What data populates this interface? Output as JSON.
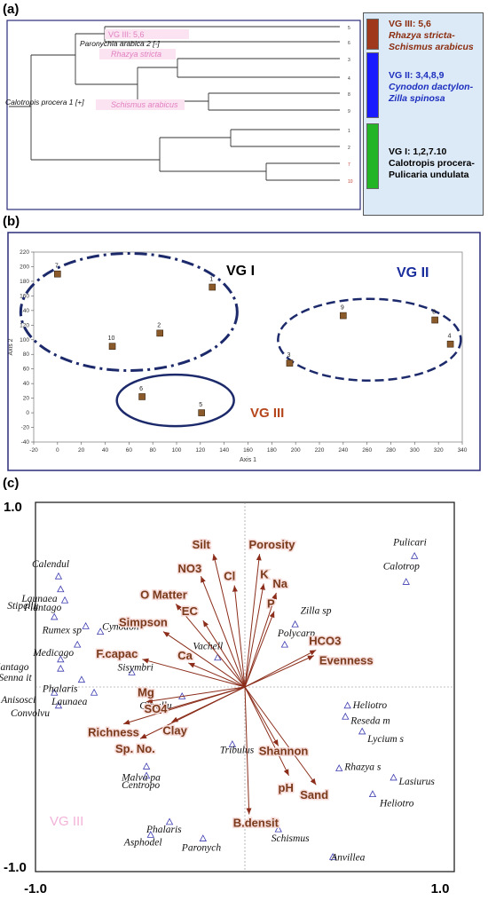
{
  "panels": {
    "a": {
      "label": "(a)",
      "root_label": "Calotropis procera 1 [+]",
      "branch_label": "Paronychia arabica 2 [-]",
      "leaf_ticks": [
        "5",
        "6",
        "3",
        "4",
        "8",
        "9",
        "1",
        "2",
        "7",
        "10"
      ],
      "ghost_labels": [
        "VG III: 5,6",
        "Rhazya stricta",
        "Schismus arabicus"
      ],
      "legend": [
        {
          "title": "VG III: 5,6",
          "line1": "Rhazya stricta-",
          "line2": "Schismus arabicus",
          "color": "#a0391c",
          "text_color": "#8b2c0e"
        },
        {
          "title": "VG II: 3,4,8,9",
          "line1": "Cynodon dactylon-",
          "line2": "Zilla spinosa",
          "color": "#1a1aff",
          "text_color": "#1c2fbf"
        },
        {
          "title": "VG I: 1,2,7.10",
          "line1": "Calotropis procera-",
          "line2": "Pulicaria undulata",
          "color": "#23b526",
          "text_color": "#000000"
        }
      ]
    },
    "b": {
      "label": "(b)",
      "xlabel": "Axis 1",
      "ylabel": "Axis 2",
      "groups": [
        {
          "name": "VG I",
          "color": "#000000"
        },
        {
          "name": "VG II",
          "color": "#1a2d9c"
        },
        {
          "name": "VG III",
          "color": "#b5451b"
        }
      ]
    },
    "c": {
      "label": "(c)",
      "ghost_label": "VG III",
      "tick_labels": [
        "1.0",
        "-1.0",
        "-1.0",
        "1.0"
      ]
    }
  },
  "chart_data": [
    {
      "type": "scatter",
      "panel": "b",
      "xlabel": "Axis 1",
      "ylabel": "Axis 2",
      "xlim": [
        -20,
        340
      ],
      "ylim": [
        -40,
        220
      ],
      "xticks": [
        -20,
        0,
        20,
        40,
        60,
        80,
        100,
        120,
        140,
        160,
        180,
        200,
        220,
        240,
        260,
        280,
        300,
        320,
        340
      ],
      "yticks": [
        -40,
        -20,
        0,
        20,
        40,
        60,
        80,
        100,
        120,
        140,
        160,
        180,
        200,
        220
      ],
      "points": [
        {
          "label": "7",
          "x": 0,
          "y": 190
        },
        {
          "label": "1",
          "x": 130,
          "y": 172
        },
        {
          "label": "2",
          "x": 86,
          "y": 109
        },
        {
          "label": "10",
          "x": 46,
          "y": 91
        },
        {
          "label": "9",
          "x": 240,
          "y": 133
        },
        {
          "label": "8",
          "x": 317,
          "y": 127
        },
        {
          "label": "4",
          "x": 330,
          "y": 94
        },
        {
          "label": "3",
          "x": 195,
          "y": 68
        },
        {
          "label": "6",
          "x": 71,
          "y": 22
        },
        {
          "label": "5",
          "x": 121,
          "y": 0
        }
      ],
      "groups": [
        {
          "name": "VG I",
          "members": [
            "7",
            "1",
            "2",
            "10"
          ]
        },
        {
          "name": "VG II",
          "members": [
            "9",
            "8",
            "4",
            "3"
          ]
        },
        {
          "name": "VG III",
          "members": [
            "6",
            "5"
          ]
        }
      ]
    },
    {
      "type": "scatter",
      "panel": "c",
      "xlim": [
        -1.0,
        1.0
      ],
      "ylim": [
        -1.0,
        1.0
      ],
      "vectors": [
        {
          "label": "Silt",
          "x": -0.15,
          "y": 0.72
        },
        {
          "label": "Porosity",
          "x": 0.07,
          "y": 0.72
        },
        {
          "label": "NO3",
          "x": -0.21,
          "y": 0.6
        },
        {
          "label": "Cl",
          "x": -0.05,
          "y": 0.55
        },
        {
          "label": "K",
          "x": 0.09,
          "y": 0.56
        },
        {
          "label": "Na",
          "x": 0.15,
          "y": 0.51
        },
        {
          "label": "P",
          "x": 0.14,
          "y": 0.41
        },
        {
          "label": "O Matter",
          "x": -0.33,
          "y": 0.45
        },
        {
          "label": "EC",
          "x": -0.2,
          "y": 0.36
        },
        {
          "label": "Simpson",
          "x": -0.39,
          "y": 0.3
        },
        {
          "label": "HCO3",
          "x": 0.34,
          "y": 0.2
        },
        {
          "label": "Evenness",
          "x": 0.33,
          "y": 0.17
        },
        {
          "label": "F.capac",
          "x": -0.49,
          "y": 0.15
        },
        {
          "label": "Ca",
          "x": -0.27,
          "y": 0.13
        },
        {
          "label": "Mg",
          "x": -0.47,
          "y": -0.08
        },
        {
          "label": "SO4",
          "x": -0.43,
          "y": -0.14
        },
        {
          "label": "Clay",
          "x": -0.35,
          "y": -0.19
        },
        {
          "label": "Richness",
          "x": -0.58,
          "y": -0.2
        },
        {
          "label": "Sp. No.",
          "x": -0.5,
          "y": -0.28
        },
        {
          "label": "Shannon",
          "x": 0.16,
          "y": -0.32
        },
        {
          "label": "pH",
          "x": 0.21,
          "y": -0.48
        },
        {
          "label": "Sand",
          "x": 0.34,
          "y": -0.53
        },
        {
          "label": "B.densit",
          "x": 0.02,
          "y": -0.69
        }
      ],
      "species": [
        {
          "label": "Pulicari",
          "x": 0.81,
          "y": 0.71
        },
        {
          "label": "Calotrop",
          "x": 0.77,
          "y": 0.57
        },
        {
          "label": "Calendul",
          "x": -0.89,
          "y": 0.6
        },
        {
          "label": "Launaea",
          "x": -0.88,
          "y": 0.53
        },
        {
          "label": "Plantago",
          "x": -0.86,
          "y": 0.47
        },
        {
          "label": "Stipellu",
          "x": -0.91,
          "y": 0.38
        },
        {
          "label": "Rumex sp",
          "x": -0.76,
          "y": 0.33
        },
        {
          "label": "Cynodon",
          "x": -0.69,
          "y": 0.3
        },
        {
          "label": "Medicago",
          "x": -0.8,
          "y": 0.23
        },
        {
          "label": "Plantago",
          "x": -0.88,
          "y": 0.15
        },
        {
          "label": "Senna it",
          "x": -0.88,
          "y": 0.1
        },
        {
          "label": "Phalaris",
          "x": -0.78,
          "y": 0.04
        },
        {
          "label": "Sisymbri",
          "x": -0.54,
          "y": 0.08
        },
        {
          "label": "Anisosci",
          "x": -0.91,
          "y": -0.03
        },
        {
          "label": "Launaea",
          "x": -0.72,
          "y": -0.03
        },
        {
          "label": "Citrullu",
          "x": -0.3,
          "y": -0.05
        },
        {
          "label": "Convolvu",
          "x": -0.89,
          "y": -0.1
        },
        {
          "label": "Vachell",
          "x": -0.13,
          "y": 0.16
        },
        {
          "label": "Zilla sp",
          "x": 0.24,
          "y": 0.34
        },
        {
          "label": "Polycarp",
          "x": 0.19,
          "y": 0.23
        },
        {
          "label": "Heliotro",
          "x": 0.49,
          "y": -0.1
        },
        {
          "label": "Reseda m",
          "x": 0.48,
          "y": -0.16
        },
        {
          "label": "Lycium s",
          "x": 0.56,
          "y": -0.24
        },
        {
          "label": "Tribulus",
          "x": -0.06,
          "y": -0.31
        },
        {
          "label": "Rhazya s",
          "x": 0.45,
          "y": -0.44
        },
        {
          "label": "Lasiurus",
          "x": 0.71,
          "y": -0.49
        },
        {
          "label": "Heliotro",
          "x": 0.61,
          "y": -0.58
        },
        {
          "label": "Malva pa",
          "x": -0.47,
          "y": -0.43
        },
        {
          "label": "Centropo",
          "x": -0.47,
          "y": -0.48
        },
        {
          "label": "Phalaris",
          "x": -0.36,
          "y": -0.73
        },
        {
          "label": "Asphodel",
          "x": -0.45,
          "y": -0.8
        },
        {
          "label": "Paronych",
          "x": -0.2,
          "y": -0.82
        },
        {
          "label": "Schismus",
          "x": 0.16,
          "y": -0.77
        },
        {
          "label": "Anvillea",
          "x": 0.42,
          "y": -0.92
        }
      ]
    }
  ]
}
